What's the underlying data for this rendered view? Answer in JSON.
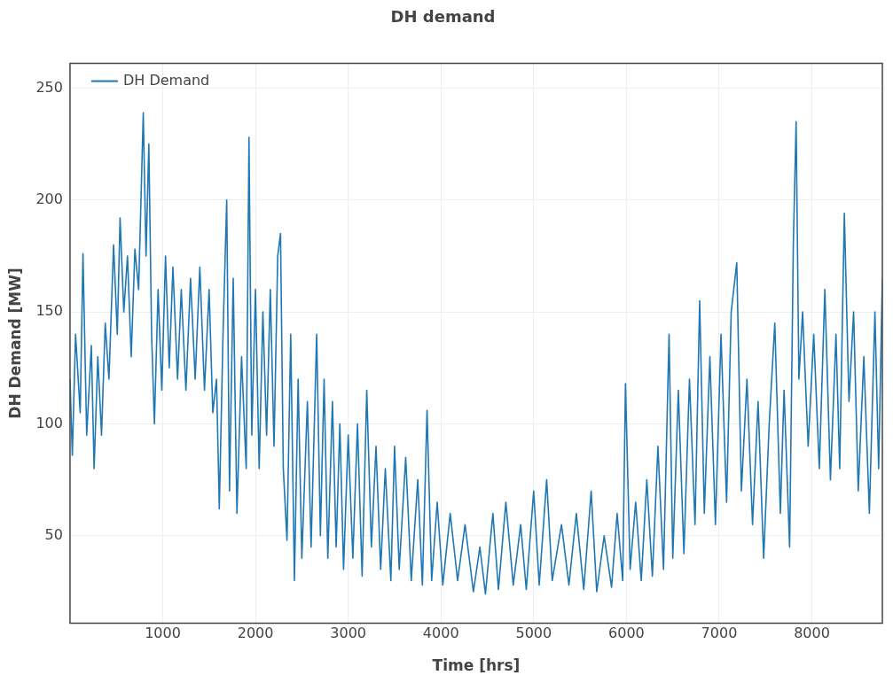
{
  "chart_data": {
    "type": "line",
    "title": "DH demand",
    "xlabel": "Time [hrs]",
    "ylabel": "DH Demand [MW]",
    "xlim": [
      0,
      8760
    ],
    "ylim": [
      11,
      261
    ],
    "xticks": [
      1000,
      2000,
      3000,
      4000,
      5000,
      6000,
      7000,
      8000
    ],
    "yticks": [
      50,
      100,
      150,
      200,
      250
    ],
    "grid": true,
    "legend": "top left",
    "marker": "none",
    "line_style": "solid",
    "series": [
      {
        "name": "DH Demand",
        "color": "#1f77b4",
        "x": [
          0,
          25,
          60,
          110,
          140,
          180,
          230,
          260,
          300,
          340,
          380,
          420,
          470,
          510,
          540,
          580,
          620,
          660,
          700,
          740,
          790,
          820,
          850,
          880,
          910,
          950,
          990,
          1030,
          1070,
          1110,
          1160,
          1200,
          1250,
          1300,
          1350,
          1400,
          1450,
          1500,
          1540,
          1580,
          1610,
          1650,
          1690,
          1720,
          1760,
          1800,
          1850,
          1900,
          1930,
          1960,
          2000,
          2040,
          2080,
          2120,
          2160,
          2200,
          2240,
          2270,
          2300,
          2340,
          2380,
          2420,
          2460,
          2500,
          2560,
          2600,
          2660,
          2700,
          2740,
          2780,
          2830,
          2870,
          2910,
          2950,
          3000,
          3050,
          3100,
          3150,
          3200,
          3250,
          3300,
          3350,
          3400,
          3460,
          3500,
          3550,
          3620,
          3680,
          3750,
          3800,
          3850,
          3900,
          3960,
          4020,
          4100,
          4180,
          4260,
          4350,
          4420,
          4480,
          4560,
          4620,
          4700,
          4780,
          4860,
          4920,
          5000,
          5060,
          5140,
          5200,
          5300,
          5380,
          5460,
          5540,
          5620,
          5680,
          5760,
          5840,
          5900,
          5960,
          5990,
          6040,
          6100,
          6160,
          6220,
          6280,
          6340,
          6400,
          6460,
          6500,
          6560,
          6620,
          6680,
          6740,
          6790,
          6840,
          6900,
          6960,
          7020,
          7080,
          7130,
          7190,
          7240,
          7300,
          7360,
          7420,
          7480,
          7540,
          7600,
          7660,
          7700,
          7760,
          7800,
          7830,
          7860,
          7900,
          7960,
          8020,
          8080,
          8140,
          8200,
          8260,
          8300,
          8350,
          8400,
          8450,
          8500,
          8560,
          8620,
          8680,
          8720,
          8760
        ],
        "values": [
          120,
          86,
          140,
          105,
          176,
          95,
          135,
          80,
          130,
          95,
          145,
          120,
          180,
          140,
          192,
          150,
          175,
          130,
          178,
          160,
          239,
          175,
          225,
          140,
          100,
          160,
          115,
          175,
          125,
          170,
          120,
          160,
          115,
          165,
          120,
          170,
          115,
          160,
          105,
          120,
          62,
          140,
          200,
          70,
          165,
          60,
          130,
          80,
          228,
          95,
          160,
          80,
          150,
          95,
          160,
          90,
          175,
          185,
          80,
          48,
          140,
          30,
          120,
          40,
          110,
          45,
          140,
          50,
          120,
          40,
          110,
          45,
          100,
          35,
          95,
          40,
          100,
          32,
          115,
          45,
          90,
          35,
          80,
          30,
          90,
          35,
          85,
          30,
          75,
          28,
          106,
          30,
          65,
          28,
          60,
          30,
          55,
          25,
          45,
          24,
          60,
          26,
          65,
          28,
          55,
          26,
          70,
          28,
          75,
          30,
          55,
          28,
          60,
          26,
          70,
          25,
          50,
          27,
          60,
          30,
          118,
          35,
          65,
          30,
          75,
          32,
          90,
          35,
          140,
          40,
          115,
          42,
          120,
          55,
          155,
          60,
          130,
          55,
          140,
          65,
          150,
          172,
          70,
          120,
          55,
          110,
          40,
          100,
          145,
          60,
          115,
          45,
          180,
          235,
          120,
          150,
          90,
          140,
          80,
          160,
          75,
          140,
          80,
          194,
          110,
          150,
          70,
          130,
          60,
          150,
          80,
          165
        ]
      }
    ]
  }
}
